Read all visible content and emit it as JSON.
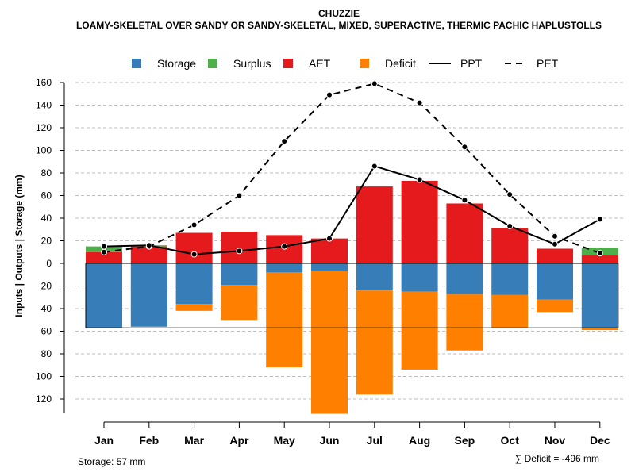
{
  "chart_data": {
    "type": "bar",
    "title": "CHUZZIE",
    "subtitle": "LOAMY-SKELETAL OVER SANDY OR SANDY-SKELETAL, MIXED, SUPERACTIVE, THERMIC PACHIC HAPLUSTOLLS",
    "xlabel": "",
    "ylabel": "Inputs | Outputs | Storage    (mm)",
    "ylim": [
      -132,
      160
    ],
    "y_ticks": [
      160,
      140,
      120,
      100,
      80,
      60,
      40,
      20,
      0,
      -20,
      -40,
      -60,
      -80,
      -100,
      -120
    ],
    "y_tick_labels": [
      "160",
      "140",
      "120",
      "100",
      "80",
      "60",
      "40",
      "20",
      "0",
      "20",
      "40",
      "60",
      "80",
      "100",
      "120"
    ],
    "grid": true,
    "legend_position": "top",
    "categories": [
      "Jan",
      "Feb",
      "Mar",
      "Apr",
      "May",
      "Jun",
      "Jul",
      "Aug",
      "Sep",
      "Oct",
      "Nov",
      "Dec"
    ],
    "legend": [
      {
        "label": "Storage",
        "kind": "box",
        "color": "#377EB8"
      },
      {
        "label": "Surplus",
        "kind": "box",
        "color": "#4DAF4A"
      },
      {
        "label": "AET",
        "kind": "box",
        "color": "#E41A1C"
      },
      {
        "label": "Deficit",
        "kind": "box",
        "color": "#FF7F00"
      },
      {
        "label": "PPT",
        "kind": "solid"
      },
      {
        "label": "PET",
        "kind": "dashed"
      }
    ],
    "series": [
      {
        "name": "AET",
        "color": "#E41A1C",
        "values": [
          10,
          15,
          27,
          28,
          25,
          22,
          68,
          73,
          53,
          31,
          13,
          7
        ]
      },
      {
        "name": "Surplus",
        "color": "#4DAF4A",
        "values": [
          5,
          1,
          0,
          0,
          0,
          0,
          0,
          0,
          0,
          0,
          0,
          7
        ]
      },
      {
        "name": "Storage",
        "color": "#377EB8",
        "values": [
          57,
          56,
          36,
          19,
          8,
          7,
          24,
          25,
          27,
          28,
          32,
          57
        ]
      },
      {
        "name": "Deficit",
        "color": "#FF7F00",
        "values": [
          0,
          0,
          6,
          31,
          84,
          126,
          92,
          69,
          50,
          29,
          11,
          2
        ]
      },
      {
        "name": "PPT",
        "color": "#000000",
        "values": [
          15,
          16,
          8,
          11,
          15,
          22,
          86,
          74,
          56,
          33,
          17,
          39
        ]
      },
      {
        "name": "PET",
        "color": "#000000",
        "values": [
          10,
          15,
          34,
          60,
          108,
          149,
          159,
          142,
          103,
          61,
          24,
          9
        ]
      }
    ],
    "annotations": {
      "storage": "Storage: 57 mm",
      "deficit_sum": "∑ Deficit = -496 mm"
    }
  }
}
